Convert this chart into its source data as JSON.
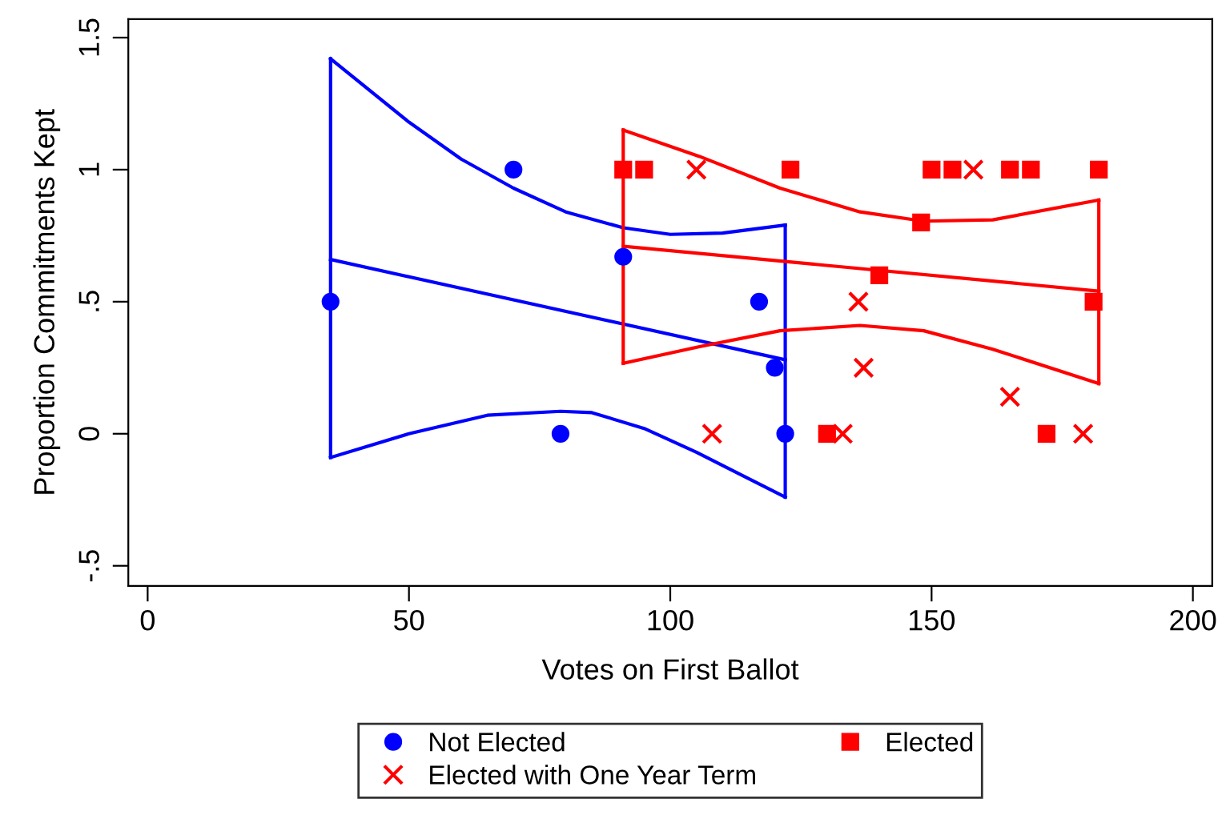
{
  "chart_data": {
    "type": "scatter",
    "xlabel": "Votes on First Ballot",
    "ylabel": "Proportion Commitments Kept",
    "xlim": [
      -3.7,
      203.7
    ],
    "ylim": [
      -0.576,
      1.57
    ],
    "xticks": [
      0,
      50,
      100,
      150,
      200
    ],
    "yticks": [
      {
        "value": -0.5,
        "label": "-.5"
      },
      0,
      {
        "value": 0.5,
        "label": ".5"
      },
      1,
      1.5
    ],
    "grid": false,
    "legend": "bottom",
    "series": [
      {
        "name": "Not Elected",
        "marker": "circle",
        "color": "#0000ff",
        "x": [
          35,
          70,
          79,
          91,
          117,
          120,
          122
        ],
        "values": [
          0.5,
          1,
          0,
          0.67,
          0.5,
          0.25,
          0
        ]
      },
      {
        "name": "Elected with One Year Term",
        "marker": "cross",
        "color": "#ff0000",
        "x": [
          105,
          158,
          136,
          137,
          165,
          108,
          133,
          179
        ],
        "values": [
          1,
          1,
          0.5,
          0.25,
          0.14,
          0,
          0,
          0
        ]
      },
      {
        "name": "Elected",
        "marker": "square",
        "color": "#ff0000",
        "x": [
          91,
          95,
          123,
          150,
          154,
          165,
          169,
          182,
          148,
          140,
          181,
          130,
          172
        ],
        "values": [
          1,
          1,
          1,
          1,
          1,
          1,
          1,
          1,
          0.8,
          0.6,
          0.5,
          0,
          0
        ]
      },
      {
        "type": "line",
        "color": "#0000ff",
        "x": [
          35,
          122
        ],
        "values": [
          0.66,
          0.28
        ]
      },
      {
        "type": "line",
        "color": "#0000ff",
        "x": [
          35,
          50,
          60,
          70,
          80,
          91,
          100,
          110,
          122
        ],
        "values": [
          1.42,
          1.18,
          1.04,
          0.93,
          0.84,
          0.78,
          0.755,
          0.76,
          0.79
        ]
      },
      {
        "type": "line",
        "color": "#0000ff",
        "x": [
          35,
          50,
          65,
          79,
          85,
          95,
          105,
          115,
          122
        ],
        "values": [
          -0.09,
          0.0,
          0.07,
          0.085,
          0.08,
          0.02,
          -0.07,
          -0.17,
          -0.24
        ]
      },
      {
        "type": "line",
        "color": "#0000ff",
        "x": [
          35,
          35
        ],
        "values": [
          -0.09,
          1.42
        ]
      },
      {
        "type": "line",
        "color": "#0000ff",
        "x": [
          122,
          122
        ],
        "values": [
          -0.24,
          0.79
        ]
      },
      {
        "type": "line",
        "color": "#ff0000",
        "x": [
          91,
          182
        ],
        "values": [
          0.71,
          0.54
        ]
      },
      {
        "type": "line",
        "color": "#ff0000",
        "x": [
          91,
          105.6,
          121,
          136.3,
          148.5,
          161.7,
          182
        ],
        "values": [
          1.15,
          1.05,
          0.93,
          0.84,
          0.805,
          0.81,
          0.885
        ]
      },
      {
        "type": "line",
        "color": "#ff0000",
        "x": [
          91,
          105.6,
          121,
          136.3,
          148.5,
          161.7,
          182
        ],
        "values": [
          0.267,
          0.33,
          0.39,
          0.41,
          0.39,
          0.32,
          0.19
        ]
      },
      {
        "type": "line",
        "color": "#ff0000",
        "x": [
          91,
          91
        ],
        "values": [
          0.267,
          1.15
        ]
      },
      {
        "type": "line",
        "color": "#ff0000",
        "x": [
          182,
          182
        ],
        "values": [
          0.19,
          0.885
        ]
      }
    ]
  }
}
